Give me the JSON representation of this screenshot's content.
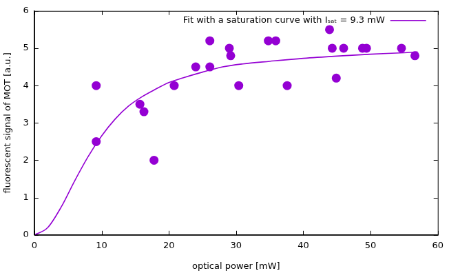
{
  "chart_data": {
    "type": "scatter",
    "x_label": "optical power [mW]",
    "y_label": "fluorescent signal of MOT [a.u.]",
    "series": [
      {
        "type": "scatter",
        "color": "#9400d3",
        "marker": "circle",
        "x": [
          9.2,
          9.2,
          15.7,
          16.3,
          17.8,
          20.8,
          24.0,
          26.1,
          26.1,
          29.0,
          29.2,
          30.4,
          34.8,
          35.9,
          37.6,
          43.9,
          44.3,
          44.9,
          46.0,
          48.8,
          49.4,
          54.6,
          56.6
        ],
        "values": [
          4.0,
          2.5,
          3.5,
          3.3,
          2.0,
          4.0,
          4.5,
          5.2,
          4.5,
          5.0,
          4.8,
          4.0,
          5.2,
          5.2,
          4.0,
          5.5,
          5.0,
          4.2,
          5.0,
          5.0,
          5.0,
          5.0,
          4.8
        ]
      },
      {
        "name": "Fit with a saturation curve with Iₛₐₜ = 9.3 mW",
        "type": "line",
        "color": "#9400d3",
        "line_style": "solid",
        "x": [
          0,
          2,
          4,
          6,
          8,
          10,
          12,
          14,
          16,
          18,
          20,
          22,
          25,
          28,
          31,
          35,
          40,
          45,
          50,
          55,
          57
        ],
        "values": [
          0,
          0.2,
          0.75,
          1.45,
          2.1,
          2.65,
          3.1,
          3.45,
          3.7,
          3.9,
          4.08,
          4.2,
          4.36,
          4.5,
          4.58,
          4.65,
          4.73,
          4.79,
          4.84,
          4.88,
          4.9
        ]
      }
    ],
    "xlim": [
      0,
      60
    ],
    "xticks": [
      0,
      10,
      20,
      30,
      40,
      50,
      60
    ],
    "ylim": [
      0,
      6
    ],
    "yticks": [
      0,
      1,
      2,
      3,
      4,
      5,
      6
    ],
    "grid": false,
    "legend": "upper right"
  }
}
